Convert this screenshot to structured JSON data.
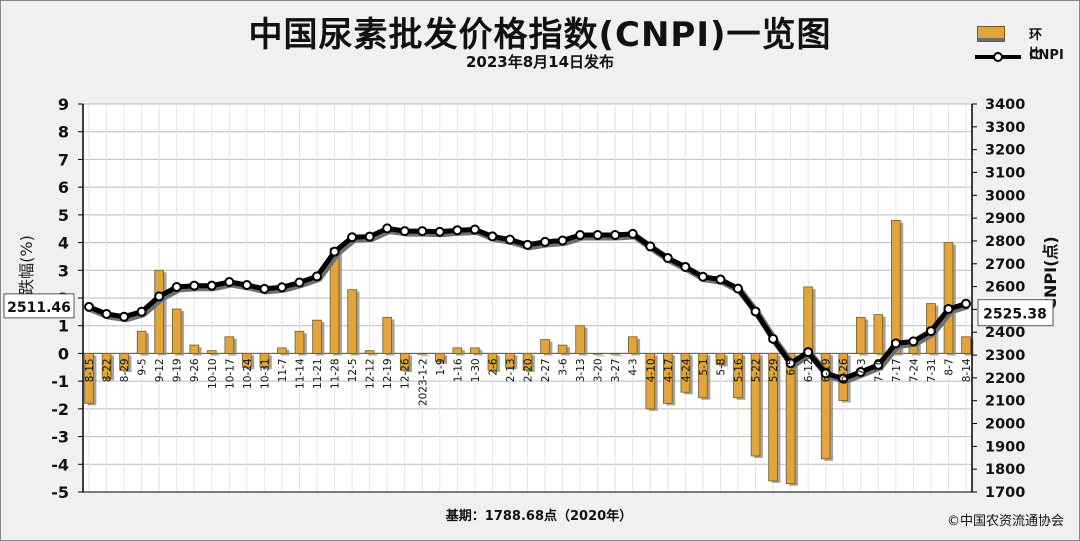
{
  "title": "中国尿素批发价格指数(CNPI)一览图",
  "subtitle": "2023年8月14日发布",
  "footer_base": "基期：1788.68点（2020年）",
  "footer_copyright": "©中国农资流通协会",
  "colors": {
    "bar_fill": "#e1a53b",
    "bar_edge": "#7a5a1c",
    "line": "#000000",
    "marker_fill": "#ffffff",
    "grid": "#bdbdbd",
    "plot_bg": "#ffffff"
  },
  "chart_data": {
    "type": "bar+line",
    "title": "中国尿素批发价格指数(CNPI)一览图",
    "y_left_label": "涨跌幅(%)",
    "y_right_label": "CNPI(点)",
    "y_left_range": [
      -5,
      9
    ],
    "y_left_ticks": [
      "-5",
      "-4",
      "-3",
      "-2",
      "-1",
      "0",
      "1",
      "2",
      "3",
      "4",
      "5",
      "6",
      "7",
      "8",
      "9"
    ],
    "y_right_range": [
      1700,
      3400
    ],
    "y_right_ticks": [
      "1700",
      "1800",
      "1900",
      "2000",
      "2100",
      "2200",
      "2300",
      "2400",
      "2500",
      "2600",
      "2700",
      "2800",
      "2900",
      "3000",
      "3100",
      "3200",
      "3300",
      "3400"
    ],
    "grid": true,
    "legend": {
      "position": "top-right",
      "bar_label": "环比",
      "line_label": "CNPI"
    },
    "x_tick_labels": [
      "8-15",
      "8-22",
      "8-29",
      "9-5",
      "9-12",
      "9-19",
      "9-26",
      "10-10",
      "10-17",
      "10-24",
      "10-31",
      "11-7",
      "11-14",
      "11-21",
      "11-28",
      "12-5",
      "12-12",
      "12-19",
      "12-26",
      "2023-1-2",
      "1-9",
      "1-16",
      "1-30",
      "2-6",
      "2-13",
      "2-20",
      "2-27",
      "3-6",
      "3-13",
      "3-20",
      "3-27",
      "4-3",
      "4-10",
      "4-17",
      "4-24",
      "5-1",
      "5-8",
      "5-16",
      "5-22",
      "5-29",
      "6-5",
      "6-12",
      "6-19",
      "6-26",
      "7-3",
      "7-10",
      "7-17",
      "7-24",
      "7-31",
      "8-7",
      "8-14"
    ],
    "series": [
      {
        "name": "环比",
        "kind": "bar",
        "axis": "left",
        "values": [
          -1.8,
          -0.9,
          -0.6,
          0.8,
          3.0,
          1.6,
          0.3,
          0.1,
          0.6,
          -0.5,
          -0.5,
          0.2,
          0.8,
          1.2,
          3.8,
          2.3,
          0.1,
          1.3,
          -0.6,
          0.0,
          -0.3,
          0.2,
          0.2,
          -0.6,
          -0.5,
          -0.6,
          0.5,
          0.3,
          1.0,
          0.0,
          0.0,
          0.6,
          -2.0,
          -1.8,
          -1.4,
          -1.6,
          -0.4,
          -1.6,
          -3.7,
          -4.6,
          -4.7,
          2.4,
          -3.8,
          -1.7,
          1.3,
          1.4,
          4.8,
          0.4,
          1.8,
          4.0,
          0.6
        ]
      },
      {
        "name": "CNPI",
        "kind": "line",
        "axis": "right",
        "values": [
          2511,
          2480,
          2468,
          2490,
          2557,
          2598,
          2604,
          2604,
          2620,
          2607,
          2590,
          2597,
          2618,
          2645,
          2753,
          2816,
          2819,
          2855,
          2843,
          2843,
          2840,
          2847,
          2850,
          2820,
          2806,
          2783,
          2796,
          2802,
          2826,
          2826,
          2826,
          2831,
          2776,
          2725,
          2686,
          2643,
          2631,
          2591,
          2491,
          2371,
          2264,
          2313,
          2220,
          2197,
          2226,
          2257,
          2351,
          2360,
          2405,
          2502,
          2525
        ]
      }
    ],
    "callouts": {
      "left_value": "2511.46",
      "right_value": "2525.38"
    }
  }
}
